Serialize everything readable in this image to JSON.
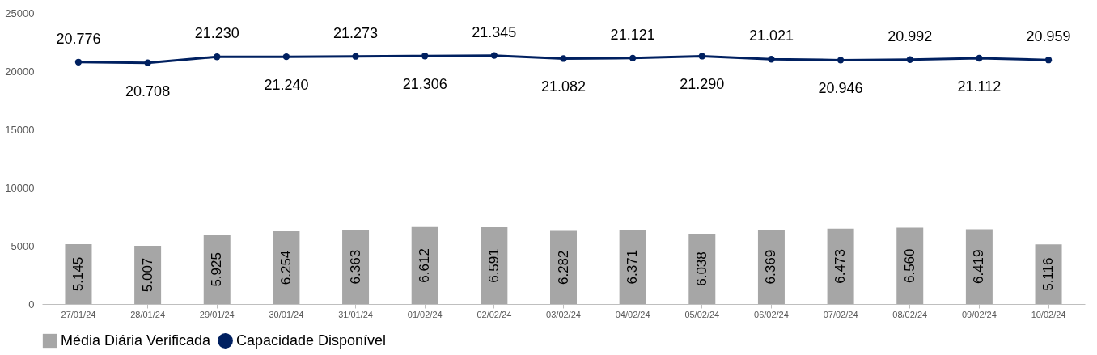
{
  "chart_data": {
    "type": "bar",
    "categories": [
      "27/01/24",
      "28/01/24",
      "29/01/24",
      "30/01/24",
      "31/01/24",
      "01/02/24",
      "02/02/24",
      "03/02/24",
      "04/02/24",
      "05/02/24",
      "06/02/24",
      "07/02/24",
      "08/02/24",
      "09/02/24",
      "10/02/24"
    ],
    "series": [
      {
        "name": "Média Diária Verificada",
        "color": "#a6a6a6",
        "values": [
          5145,
          5007,
          5925,
          6254,
          6363,
          6612,
          6591,
          6282,
          6371,
          6038,
          6369,
          6473,
          6560,
          6419,
          5116
        ],
        "value_labels": [
          "5.145",
          "5.007",
          "5.925",
          "6.254",
          "6.363",
          "6.612",
          "6.591",
          "6.282",
          "6.371",
          "6.038",
          "6.369",
          "6.473",
          "6.560",
          "6.419",
          "5.116"
        ]
      },
      {
        "name": "Capacidade Disponível",
        "type": "line",
        "color": "#002060",
        "marker": "circle",
        "values": [
          20776,
          20708,
          21230,
          21240,
          21273,
          21306,
          21345,
          21082,
          21121,
          21290,
          21021,
          20946,
          20992,
          21112,
          20959
        ],
        "value_labels": [
          "20.776",
          "20.708",
          "21.230",
          "21.240",
          "21.273",
          "21.306",
          "21.345",
          "21.082",
          "21.121",
          "21.290",
          "21.021",
          "20.946",
          "20.992",
          "21.112",
          "20.959"
        ]
      }
    ],
    "ylim": [
      0,
      25000
    ],
    "yticks": [
      0,
      5000,
      10000,
      15000,
      20000,
      25000
    ],
    "grid": false,
    "legend": "bottom"
  }
}
